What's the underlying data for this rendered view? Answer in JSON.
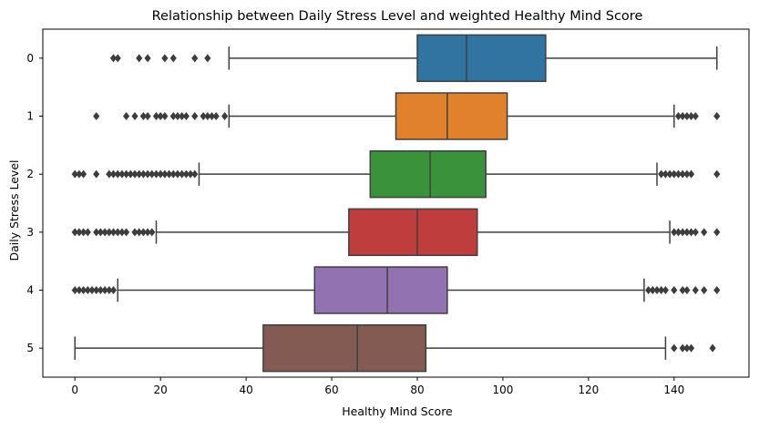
{
  "chart_data": {
    "type": "boxplot",
    "orientation": "horizontal",
    "title": "Relationship between Daily Stress Level and weighted Healthy Mind Score",
    "xlabel": "Healthy Mind Score",
    "ylabel": "Daily Stress Level",
    "xlim": [
      -7.5,
      157.5
    ],
    "xticks": [
      0,
      20,
      40,
      60,
      80,
      100,
      120,
      140
    ],
    "grid": false,
    "categories": [
      "0",
      "1",
      "2",
      "3",
      "4",
      "5"
    ],
    "colors": [
      "#3274a1",
      "#e1812c",
      "#3a923a",
      "#c03d3e",
      "#9372b2",
      "#845b53"
    ],
    "boxes": [
      {
        "category": "0",
        "whisker_low": 36,
        "q1": 80,
        "median": 91.5,
        "q3": 110,
        "whisker_high": 150,
        "outliers": [
          9,
          10,
          15,
          17,
          21,
          23,
          28,
          31
        ]
      },
      {
        "category": "1",
        "whisker_low": 36,
        "q1": 75,
        "median": 87,
        "q3": 101,
        "whisker_high": 140,
        "outliers": [
          5,
          12,
          14,
          16,
          17,
          19,
          20,
          21,
          23,
          24,
          25,
          26,
          28,
          30,
          31,
          32,
          33,
          35,
          141,
          142,
          143,
          144,
          145,
          150
        ]
      },
      {
        "category": "2",
        "whisker_low": 29,
        "q1": 69,
        "median": 83,
        "q3": 96,
        "whisker_high": 136,
        "outliers": [
          0,
          1,
          2,
          5,
          8,
          9,
          10,
          11,
          12,
          13,
          14,
          15,
          16,
          17,
          18,
          19,
          20,
          21,
          22,
          23,
          24,
          25,
          26,
          27,
          28,
          137,
          138,
          139,
          140,
          141,
          142,
          143,
          144,
          150
        ]
      },
      {
        "category": "3",
        "whisker_low": 19,
        "q1": 64,
        "median": 80,
        "q3": 94,
        "whisker_high": 139,
        "outliers": [
          0,
          1,
          2,
          3,
          5,
          6,
          7,
          8,
          9,
          10,
          11,
          12,
          14,
          15,
          16,
          17,
          18,
          140,
          141,
          142,
          143,
          144,
          145,
          147,
          150
        ]
      },
      {
        "category": "4",
        "whisker_low": 10,
        "q1": 56,
        "median": 73,
        "q3": 87,
        "whisker_high": 133,
        "outliers": [
          0,
          1,
          2,
          3,
          4,
          5,
          6,
          7,
          8,
          9,
          134,
          135,
          136,
          137,
          138,
          140,
          142,
          143,
          145,
          147,
          150
        ]
      },
      {
        "category": "5",
        "whisker_low": 0,
        "q1": 44,
        "median": 66,
        "q3": 82,
        "whisker_high": 138,
        "outliers": [
          140,
          142,
          143,
          144,
          149
        ]
      }
    ]
  }
}
